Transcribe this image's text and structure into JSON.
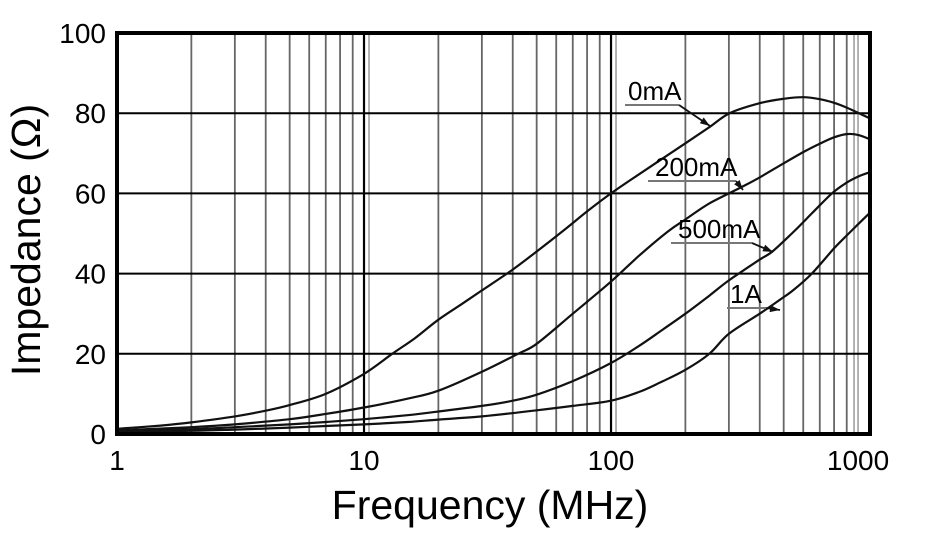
{
  "colors": {
    "background": "#ffffff",
    "curve": "#111111",
    "grid_major": "#000000",
    "grid_minor": "#666666",
    "grid_artifact": "#999999",
    "border": "#000000",
    "text": "#000000",
    "underline": "#777777"
  },
  "chart_data": {
    "type": "line",
    "title": "",
    "xlabel": "Frequency (MHz)",
    "ylabel": "Impedance (Ω)",
    "legend_position": "inline-annotations",
    "grid": "on",
    "x_axis": {
      "scale": "log",
      "unit": "MHz",
      "range": [
        1,
        1118
      ],
      "tick_values": [
        1,
        10,
        100,
        1000
      ],
      "tick_labels": [
        "1",
        "10",
        "100",
        "1000"
      ],
      "major_gridlines": [
        10,
        100
      ],
      "minor_gridlines": [
        2,
        3,
        4,
        5,
        6,
        7,
        8,
        9,
        20,
        30,
        40,
        50,
        60,
        70,
        80,
        90,
        200,
        300,
        400,
        500,
        600,
        700,
        800,
        900
      ]
    },
    "y_axis": {
      "scale": "linear",
      "unit": "Ω",
      "range": [
        0,
        100
      ],
      "tick_values": [
        0,
        20,
        40,
        60,
        80,
        100
      ],
      "tick_labels": [
        "0",
        "20",
        "40",
        "60",
        "80",
        "100"
      ],
      "gridlines": [
        20,
        40,
        60,
        80
      ]
    },
    "series": [
      {
        "name": "0mA",
        "points": [
          [
            1,
            1.3
          ],
          [
            1.5,
            2.1
          ],
          [
            2,
            2.9
          ],
          [
            3,
            4.4
          ],
          [
            4,
            5.8
          ],
          [
            5,
            7.2
          ],
          [
            7,
            10
          ],
          [
            10,
            15
          ],
          [
            13,
            20
          ],
          [
            16,
            23.8
          ],
          [
            20,
            28.5
          ],
          [
            25,
            32.5
          ],
          [
            30,
            35.8
          ],
          [
            40,
            41
          ],
          [
            50,
            45.5
          ],
          [
            65,
            51
          ],
          [
            80,
            55.5
          ],
          [
            100,
            60
          ],
          [
            130,
            64.8
          ],
          [
            160,
            68.5
          ],
          [
            200,
            72.5
          ],
          [
            250,
            76.5
          ],
          [
            302,
            80
          ],
          [
            400,
            82.5
          ],
          [
            500,
            83.6
          ],
          [
            600,
            84
          ],
          [
            700,
            83.5
          ],
          [
            800,
            82.6
          ],
          [
            900,
            81.4
          ],
          [
            1000,
            80.1
          ],
          [
            1118,
            78.7
          ]
        ]
      },
      {
        "name": "200mA",
        "points": [
          [
            1,
            0.9
          ],
          [
            2,
            1.7
          ],
          [
            3,
            2.4
          ],
          [
            5,
            3.7
          ],
          [
            7,
            5
          ],
          [
            10,
            6.6
          ],
          [
            15,
            8.8
          ],
          [
            20,
            10.8
          ],
          [
            30,
            15.5
          ],
          [
            42,
            20
          ],
          [
            50,
            22.5
          ],
          [
            70,
            30
          ],
          [
            100,
            38
          ],
          [
            130,
            44.5
          ],
          [
            170,
            50.5
          ],
          [
            200,
            53.5
          ],
          [
            250,
            57.5
          ],
          [
            336,
            61.5
          ],
          [
            400,
            64
          ],
          [
            500,
            67.5
          ],
          [
            600,
            70.3
          ],
          [
            700,
            72.4
          ],
          [
            800,
            74
          ],
          [
            900,
            74.8
          ],
          [
            1000,
            74.6
          ],
          [
            1118,
            73.5
          ]
        ]
      },
      {
        "name": "500mA",
        "points": [
          [
            1,
            0.7
          ],
          [
            2,
            1.2
          ],
          [
            3,
            1.7
          ],
          [
            5,
            2.4
          ],
          [
            7,
            3
          ],
          [
            10,
            3.7
          ],
          [
            15,
            4.7
          ],
          [
            20,
            5.6
          ],
          [
            30,
            7
          ],
          [
            40,
            8.3
          ],
          [
            50,
            9.8
          ],
          [
            70,
            13.2
          ],
          [
            100,
            17.7
          ],
          [
            130,
            22
          ],
          [
            160,
            25.8
          ],
          [
            200,
            30
          ],
          [
            250,
            34.5
          ],
          [
            300,
            38.3
          ],
          [
            400,
            43.5
          ],
          [
            450,
            45.5
          ],
          [
            550,
            50.5
          ],
          [
            650,
            55
          ],
          [
            784,
            60
          ],
          [
            900,
            62.7
          ],
          [
            1000,
            64.2
          ],
          [
            1118,
            65.3
          ]
        ]
      },
      {
        "name": "1A",
        "points": [
          [
            1,
            0.5
          ],
          [
            2,
            0.8
          ],
          [
            3,
            1.1
          ],
          [
            5,
            1.6
          ],
          [
            7,
            2
          ],
          [
            10,
            2.4
          ],
          [
            15,
            3
          ],
          [
            20,
            3.6
          ],
          [
            30,
            4.4
          ],
          [
            50,
            5.9
          ],
          [
            70,
            7
          ],
          [
            100,
            8.3
          ],
          [
            130,
            10.5
          ],
          [
            160,
            13
          ],
          [
            200,
            16
          ],
          [
            250,
            20
          ],
          [
            300,
            25
          ],
          [
            400,
            30
          ],
          [
            483,
            33.5
          ],
          [
            550,
            36
          ],
          [
            650,
            40
          ],
          [
            800,
            46.3
          ],
          [
            900,
            49.5
          ],
          [
            1000,
            52.3
          ],
          [
            1118,
            55.2
          ]
        ]
      }
    ],
    "annotations": [
      {
        "label": "0mA",
        "points_to": [
          252,
          76.6
        ]
      },
      {
        "label": "200mA",
        "points_to": [
          336,
          61
        ]
      },
      {
        "label": "500mA",
        "points_to": [
          450,
          45.4
        ]
      },
      {
        "label": "1A",
        "points_to": [
          483,
          31.2
        ]
      }
    ]
  }
}
